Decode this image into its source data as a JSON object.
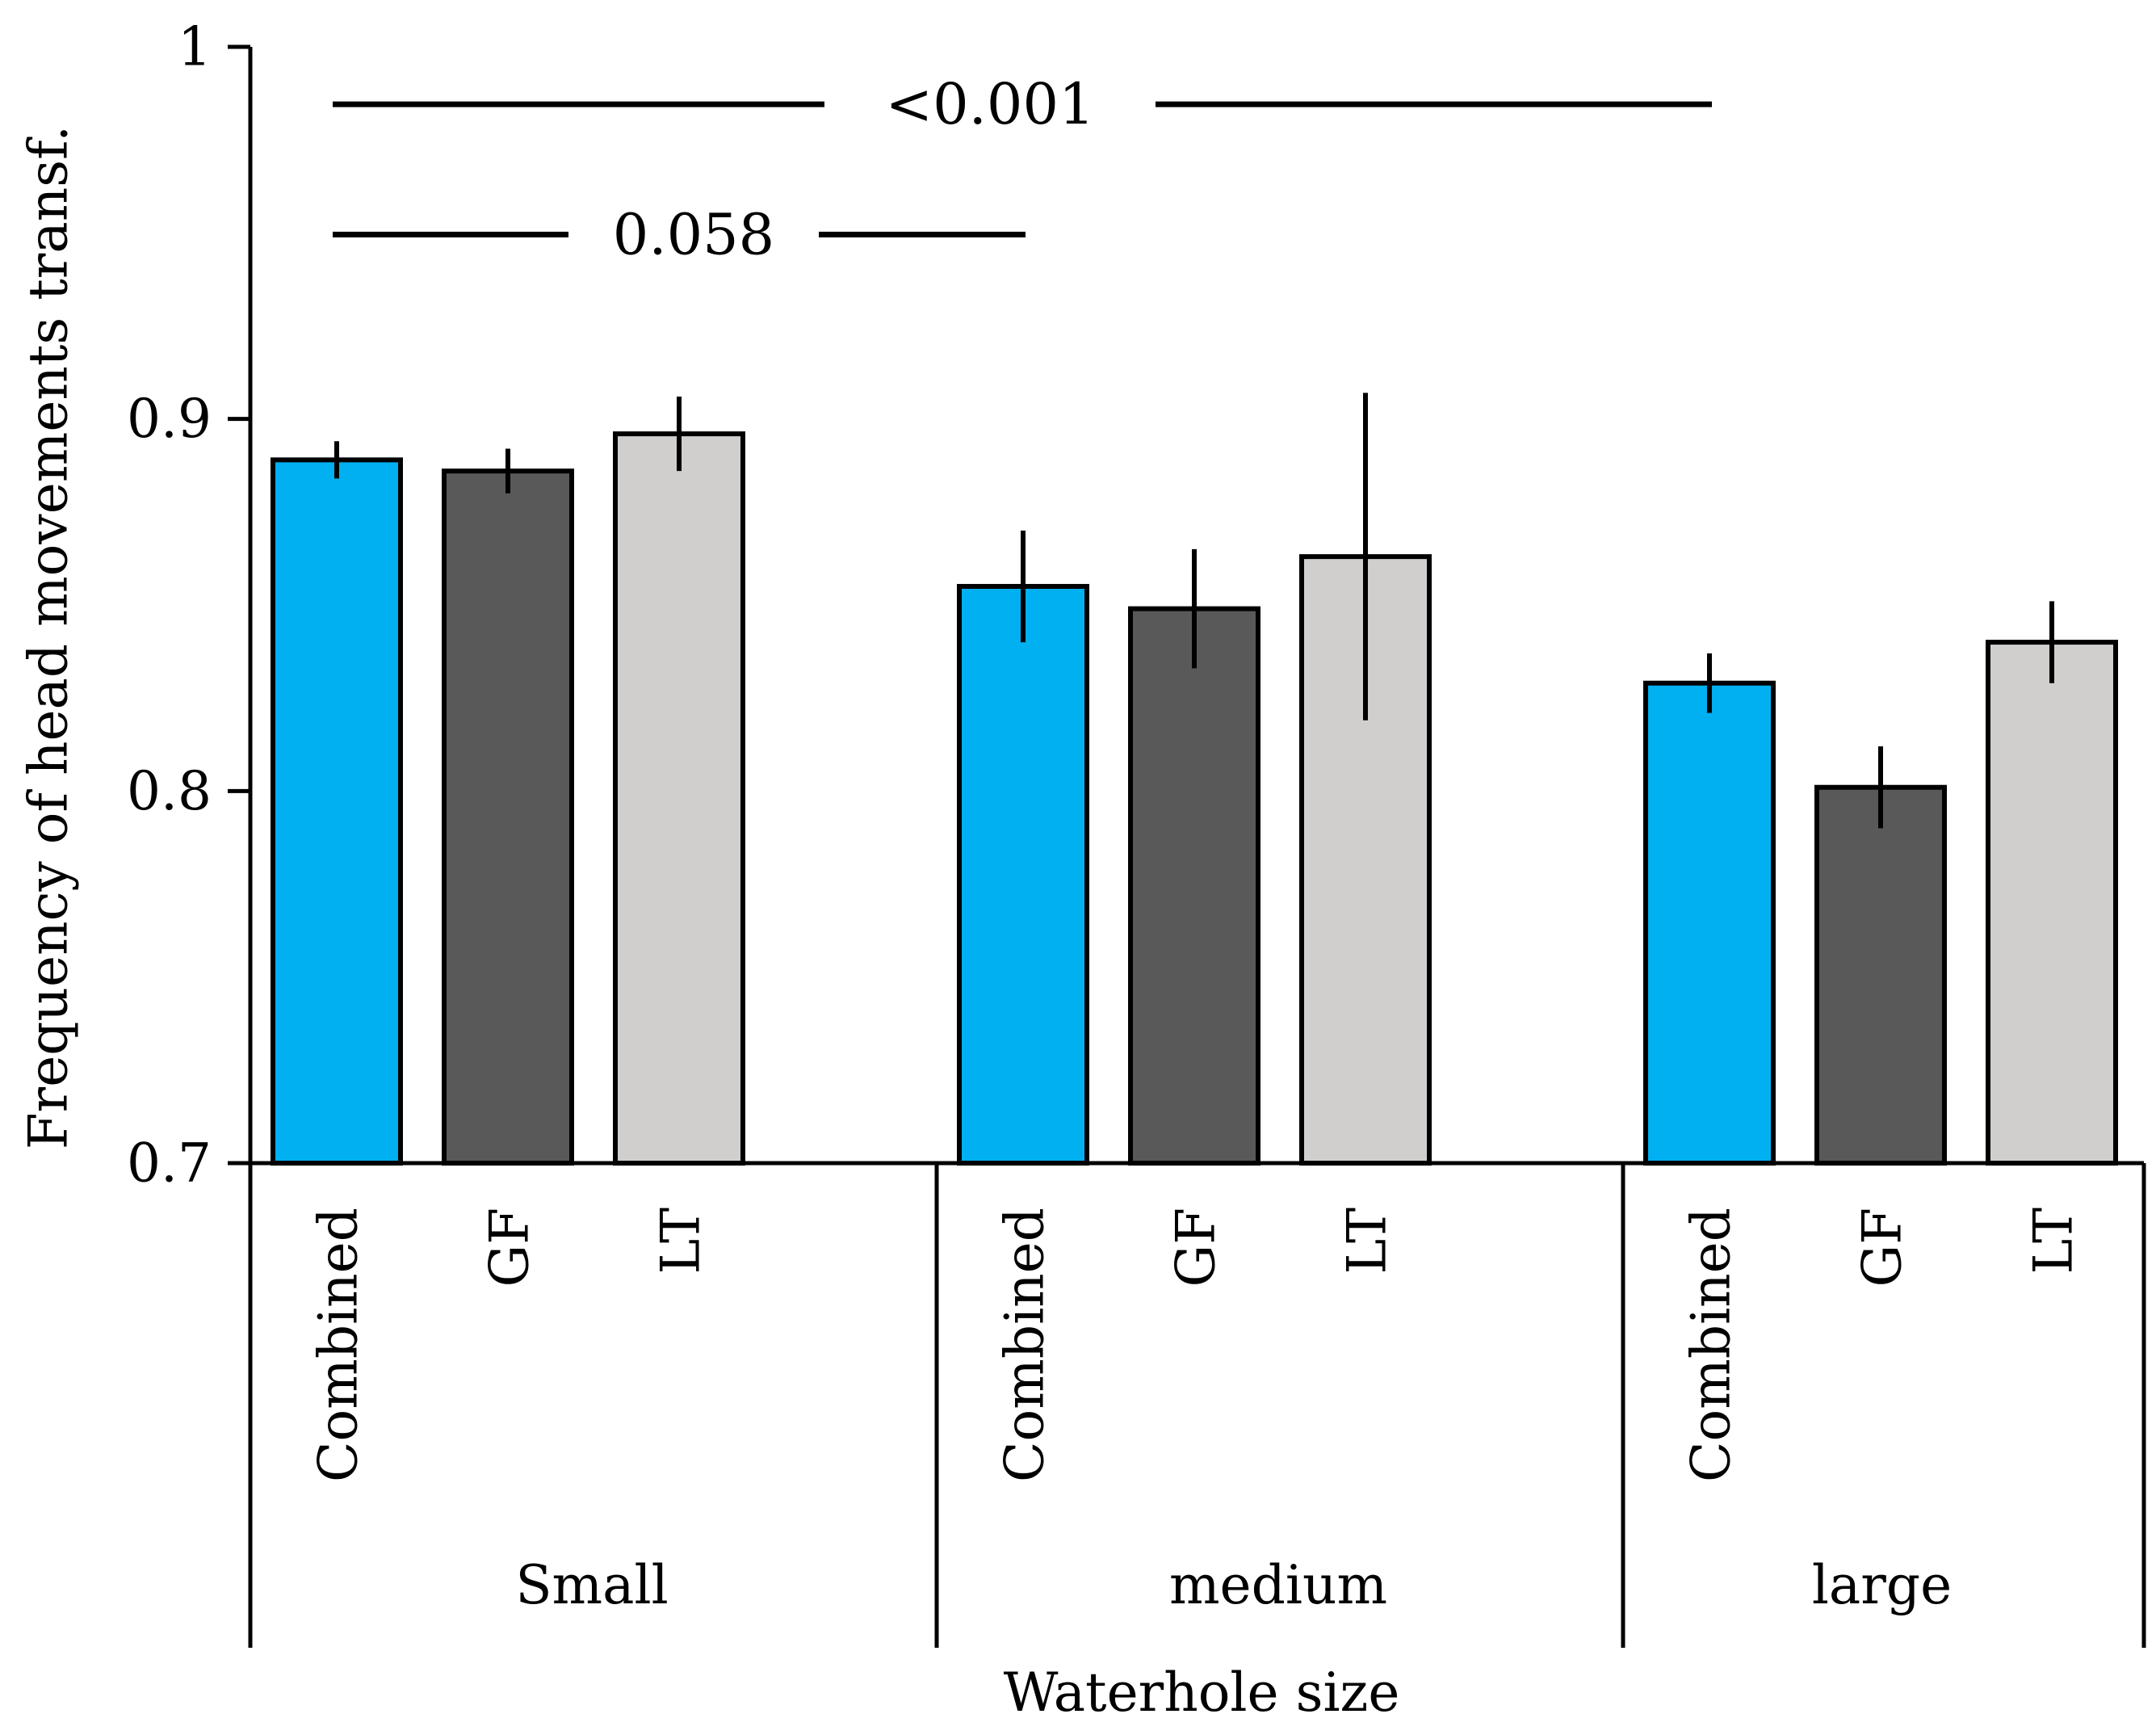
{
  "chart_data": {
    "type": "bar",
    "title": "",
    "xlabel": "Waterhole size",
    "ylabel": "Frequency of head movements transf.",
    "ylim": [
      0.7,
      1.0
    ],
    "yticks": [
      "0.7",
      "0.8",
      "0.9",
      "1"
    ],
    "ytick_values": [
      0.7,
      0.8,
      0.9,
      1.0
    ],
    "grid": false,
    "legend": "none",
    "groups": [
      {
        "name": "Small",
        "categories": [
          "Combined",
          "GF",
          "LT"
        ],
        "values": [
          0.889,
          0.886,
          0.896
        ],
        "errors": [
          0.005,
          0.006,
          0.01
        ]
      },
      {
        "name": "medium",
        "categories": [
          "Combined",
          "GF",
          "LT"
        ],
        "values": [
          0.855,
          0.849,
          0.863
        ],
        "errors": [
          0.015,
          0.016,
          0.044
        ]
      },
      {
        "name": "large",
        "categories": [
          "Combined",
          "GF",
          "LT"
        ],
        "values": [
          0.829,
          0.801,
          0.84
        ],
        "errors": [
          0.008,
          0.011,
          0.011
        ]
      }
    ],
    "colors": {
      "Combined": "#00b0f0",
      "GF": "#595959",
      "LT": "#d0cfcd"
    },
    "annotations": [
      {
        "text": "<0.001",
        "from": "Small",
        "to": "large",
        "y": 0.985
      },
      {
        "text": "0.058",
        "from": "Small",
        "to": "medium",
        "y": 0.95
      }
    ]
  }
}
